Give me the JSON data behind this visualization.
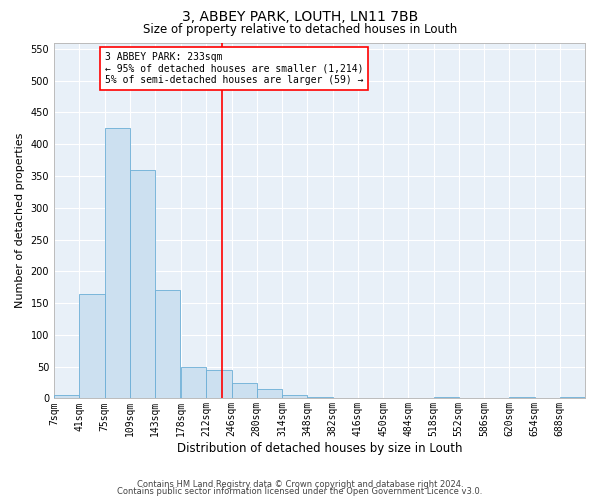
{
  "title": "3, ABBEY PARK, LOUTH, LN11 7BB",
  "subtitle": "Size of property relative to detached houses in Louth",
  "xlabel": "Distribution of detached houses by size in Louth",
  "ylabel": "Number of detached properties",
  "bin_labels": [
    "7sqm",
    "41sqm",
    "75sqm",
    "109sqm",
    "143sqm",
    "178sqm",
    "212sqm",
    "246sqm",
    "280sqm",
    "314sqm",
    "348sqm",
    "382sqm",
    "416sqm",
    "450sqm",
    "484sqm",
    "518sqm",
    "552sqm",
    "586sqm",
    "620sqm",
    "654sqm",
    "688sqm"
  ],
  "bin_edges": [
    7,
    41,
    75,
    109,
    143,
    178,
    212,
    246,
    280,
    314,
    348,
    382,
    416,
    450,
    484,
    518,
    552,
    586,
    620,
    654,
    688,
    722
  ],
  "bar_heights": [
    5,
    165,
    425,
    360,
    170,
    50,
    45,
    25,
    15,
    5,
    3,
    0,
    0,
    0,
    0,
    2,
    0,
    0,
    2,
    0,
    2
  ],
  "bar_color": "#cce0f0",
  "bar_edge_color": "#6baed6",
  "vline_x": 233,
  "vline_color": "red",
  "annotation_text": "3 ABBEY PARK: 233sqm\n← 95% of detached houses are smaller (1,214)\n5% of semi-detached houses are larger (59) →",
  "annotation_box_color": "white",
  "annotation_box_edge_color": "red",
  "ylim": [
    0,
    560
  ],
  "yticks": [
    0,
    50,
    100,
    150,
    200,
    250,
    300,
    350,
    400,
    450,
    500,
    550
  ],
  "background_color": "#e8f0f8",
  "footer1": "Contains HM Land Registry data © Crown copyright and database right 2024.",
  "footer2": "Contains public sector information licensed under the Open Government Licence v3.0.",
  "title_fontsize": 10,
  "subtitle_fontsize": 8.5,
  "ylabel_fontsize": 8,
  "xlabel_fontsize": 8.5,
  "tick_fontsize": 7,
  "annotation_fontsize": 7,
  "footer_fontsize": 6
}
